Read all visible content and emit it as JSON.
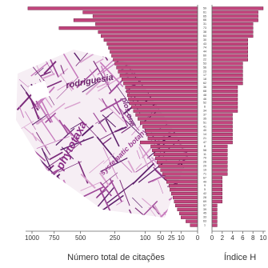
{
  "chart_data": [
    {
      "type": "hbar",
      "xlabel": "Número total de citações",
      "xscale": "sqrt",
      "reversed": true,
      "color": "#c2457d",
      "categories": [
        "59",
        "61",
        "65",
        "66",
        "31",
        "73",
        "38",
        "64",
        "30",
        "43",
        "74",
        "44",
        "60",
        "22",
        "53",
        "56",
        "23",
        "17",
        "18",
        "62",
        "36",
        "68",
        "48",
        "46",
        "52",
        "6",
        "34",
        "37",
        "35",
        "51",
        "41",
        "40",
        "14",
        "21",
        "47",
        "8",
        "58",
        "11",
        "70",
        "26",
        "29",
        "19",
        "71",
        "67",
        "49",
        "9",
        "5",
        "42",
        "28",
        "69",
        "57",
        "39",
        "45",
        "33",
        "63",
        "1"
      ],
      "values": [
        1050,
        480,
        400,
        560,
        380,
        700,
        360,
        340,
        320,
        300,
        290,
        280,
        270,
        260,
        250,
        240,
        230,
        220,
        210,
        200,
        190,
        185,
        180,
        175,
        170,
        160,
        150,
        140,
        130,
        120,
        110,
        100,
        95,
        90,
        120,
        80,
        75,
        70,
        65,
        60,
        55,
        50,
        45,
        40,
        35,
        30,
        28,
        25,
        22,
        20,
        18,
        15,
        12,
        10,
        5,
        2
      ],
      "xlim": [
        0,
        1000
      ],
      "xticks": [
        1000,
        750,
        500,
        250,
        100,
        50,
        25,
        10,
        0
      ]
    },
    {
      "type": "hbar",
      "xlabel": "Índice H",
      "color": "#c2457d",
      "values": [
        10,
        9,
        9,
        9,
        8,
        8,
        8,
        8,
        7,
        7,
        7,
        7,
        7,
        7,
        6,
        6,
        6,
        6,
        6,
        6,
        5,
        5,
        5,
        5,
        5,
        5,
        5,
        4,
        4,
        4,
        4,
        4,
        4,
        4,
        4,
        3,
        3,
        3,
        3,
        3,
        3,
        3,
        3,
        2,
        2,
        2,
        2,
        2,
        2,
        2,
        1,
        1,
        1,
        1,
        1,
        1
      ],
      "xlim": [
        0,
        10
      ],
      "xticks": [
        0,
        2,
        4,
        6,
        8,
        10
      ]
    }
  ],
  "word_cloud": {
    "words": [
      "rodriguesia",
      "phytotaxa",
      "plos one",
      "systematic botany"
    ]
  }
}
